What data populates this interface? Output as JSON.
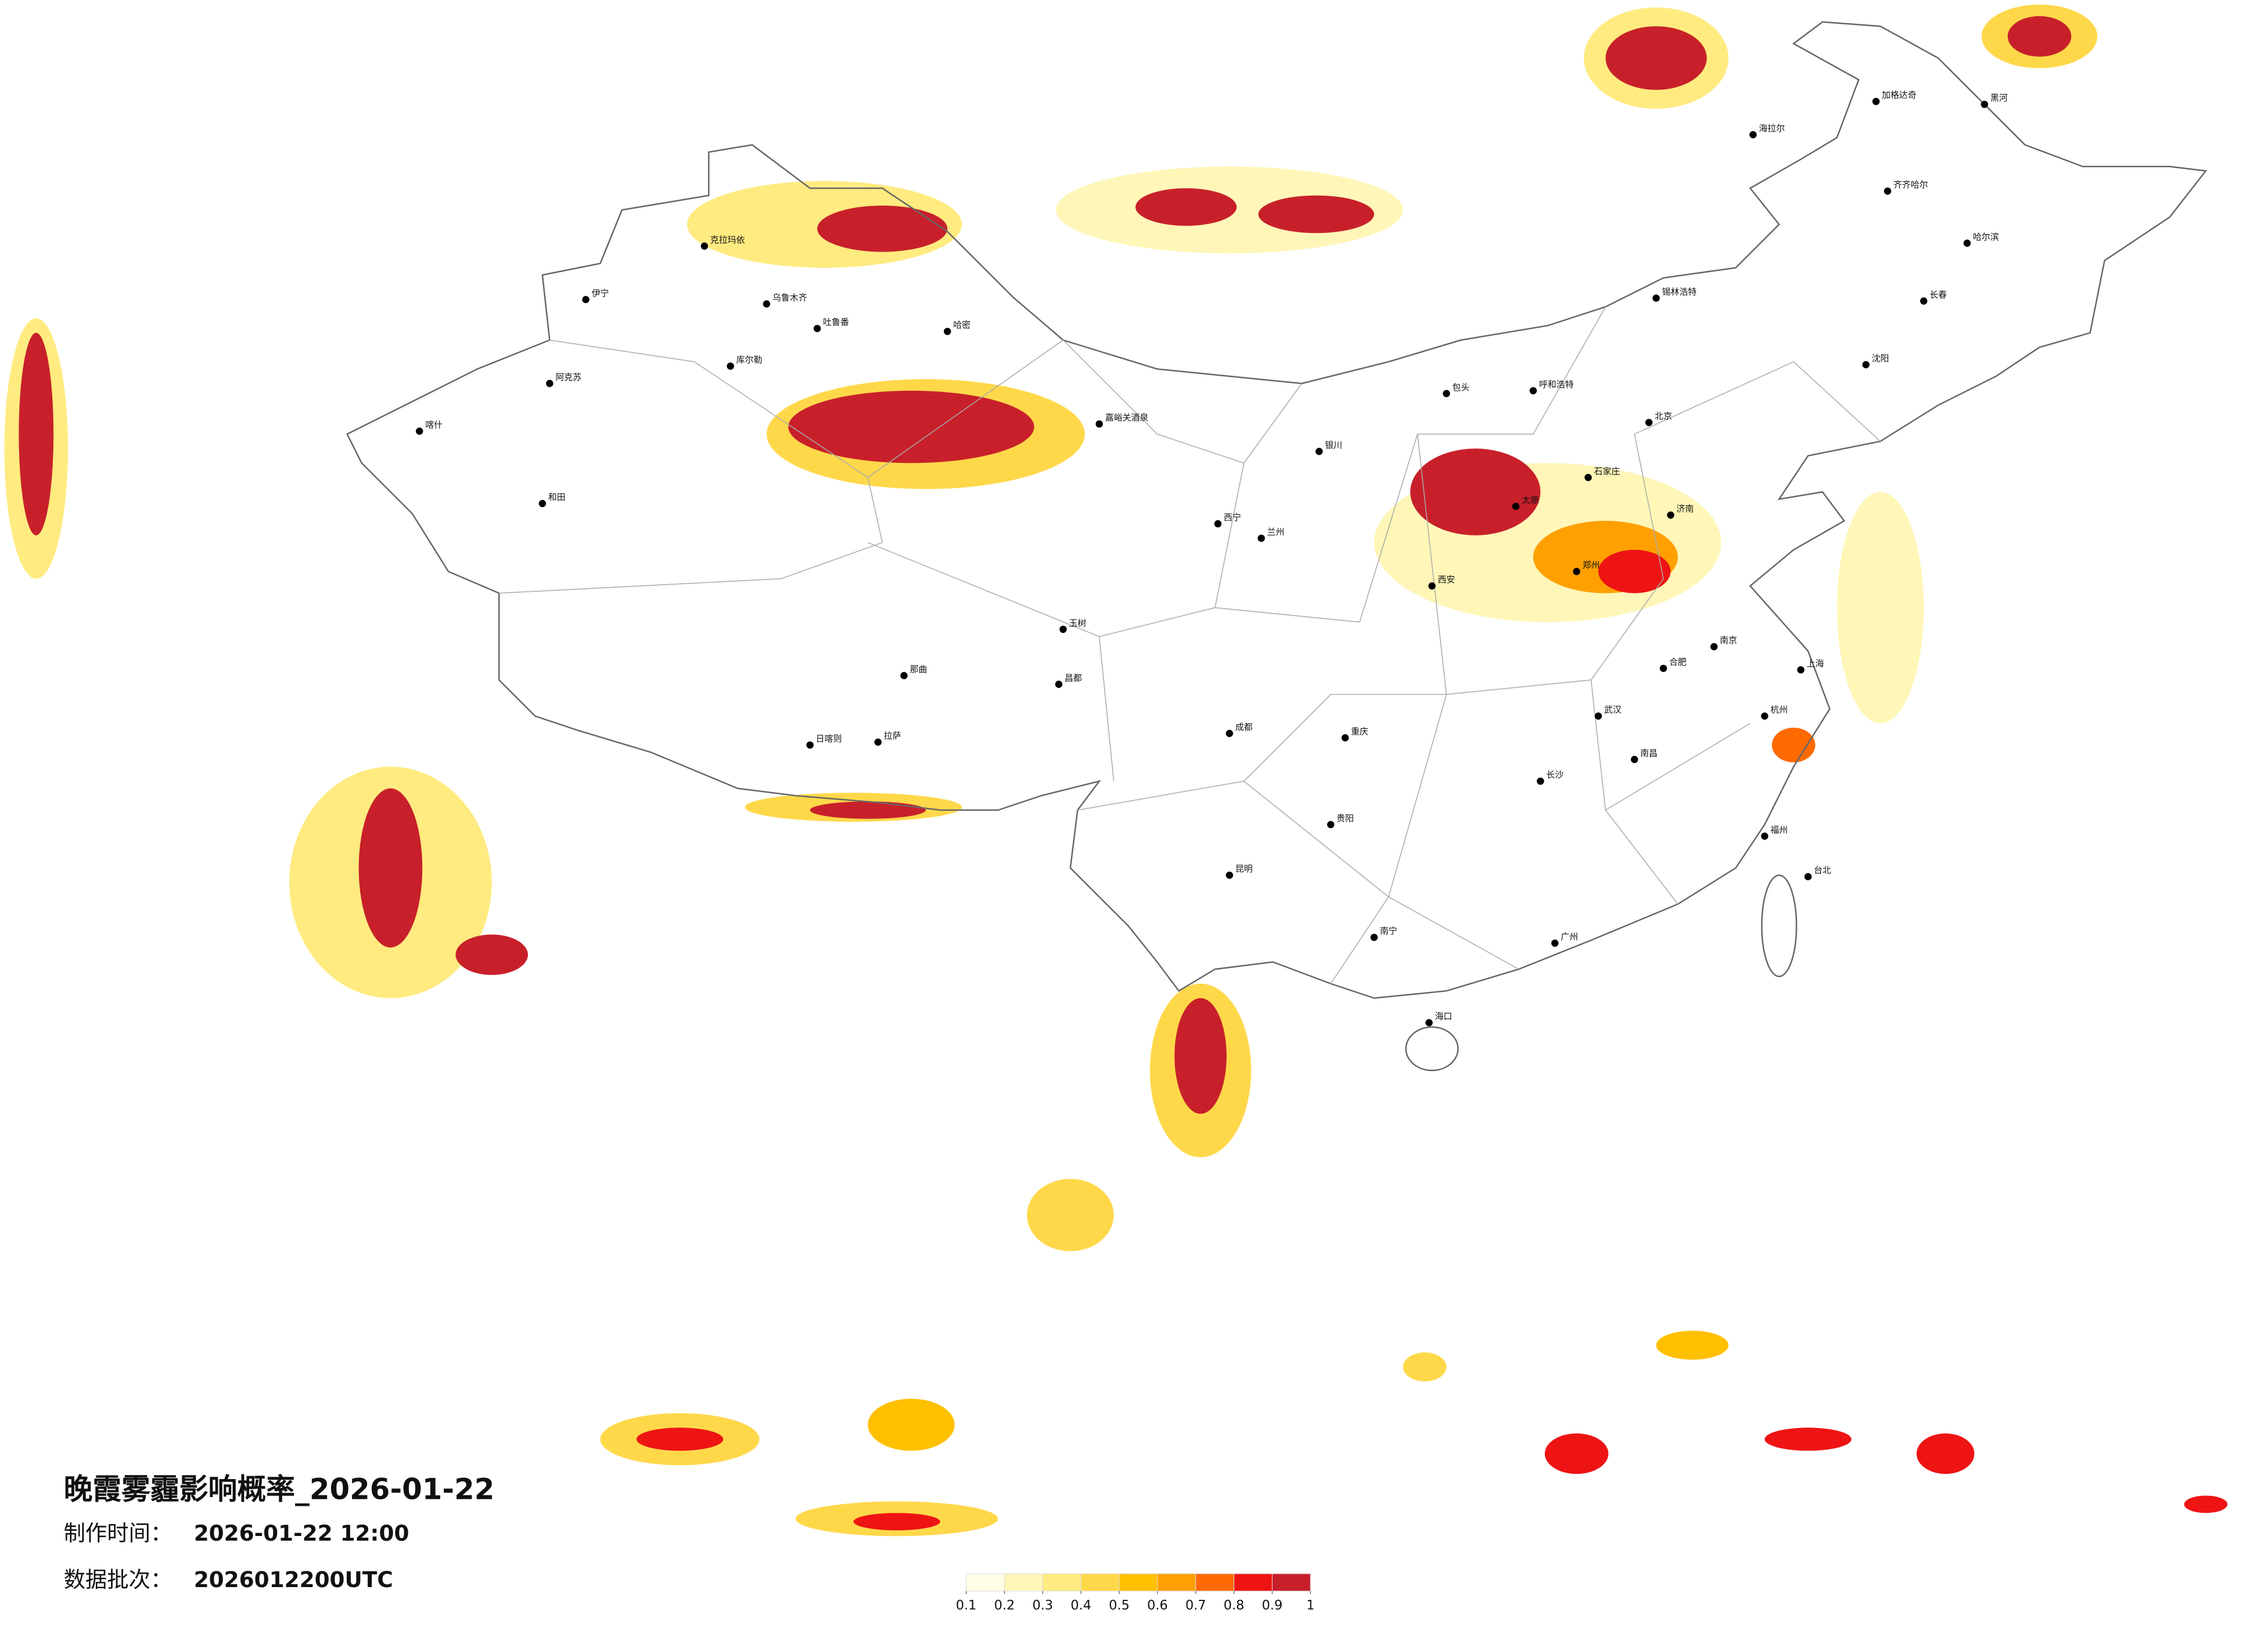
{
  "title": "晚霞雾霾影响概率_2026-01-22",
  "info": [
    {
      "label": "制作时间：",
      "value": "2026-01-22 12:00"
    },
    {
      "label": "数据批次：",
      "value": "2026012200UTC"
    }
  ],
  "legend": {
    "colors": [
      "#fffde6",
      "#fff6b8",
      "#ffeb80",
      "#ffd84a",
      "#ffc000",
      "#ffa000",
      "#ff6a00",
      "#ee1414",
      "#c8202a"
    ],
    "ticks": [
      0.1,
      0.2,
      0.3,
      0.4,
      0.5,
      0.6,
      0.7,
      0.8,
      0.9,
      1
    ]
  },
  "cities": [
    "克拉玛依",
    "乌鲁木齐",
    "吐鲁番",
    "哈密",
    "伊宁",
    "库尔勒",
    "阿克苏",
    "喀什",
    "和田",
    "嘉峪关酒泉",
    "拉萨",
    "日喀则",
    "那曲",
    "昌都",
    "玉树",
    "西宁",
    "兰州",
    "银川",
    "呼和浩特",
    "包头",
    "太原",
    "石家庄",
    "北京",
    "济南",
    "郑州",
    "西安",
    "成都",
    "重庆",
    "贵阳",
    "昆明",
    "南宁",
    "广州",
    "武汉",
    "长沙",
    "南昌",
    "合肥",
    "南京",
    "上海",
    "杭州",
    "福州",
    "台北",
    "海口",
    "长春",
    "哈尔滨",
    "沈阳",
    "齐齐哈尔",
    "海拉尔",
    "锡林浩特",
    "加格达奇",
    "黑河"
  ]
}
